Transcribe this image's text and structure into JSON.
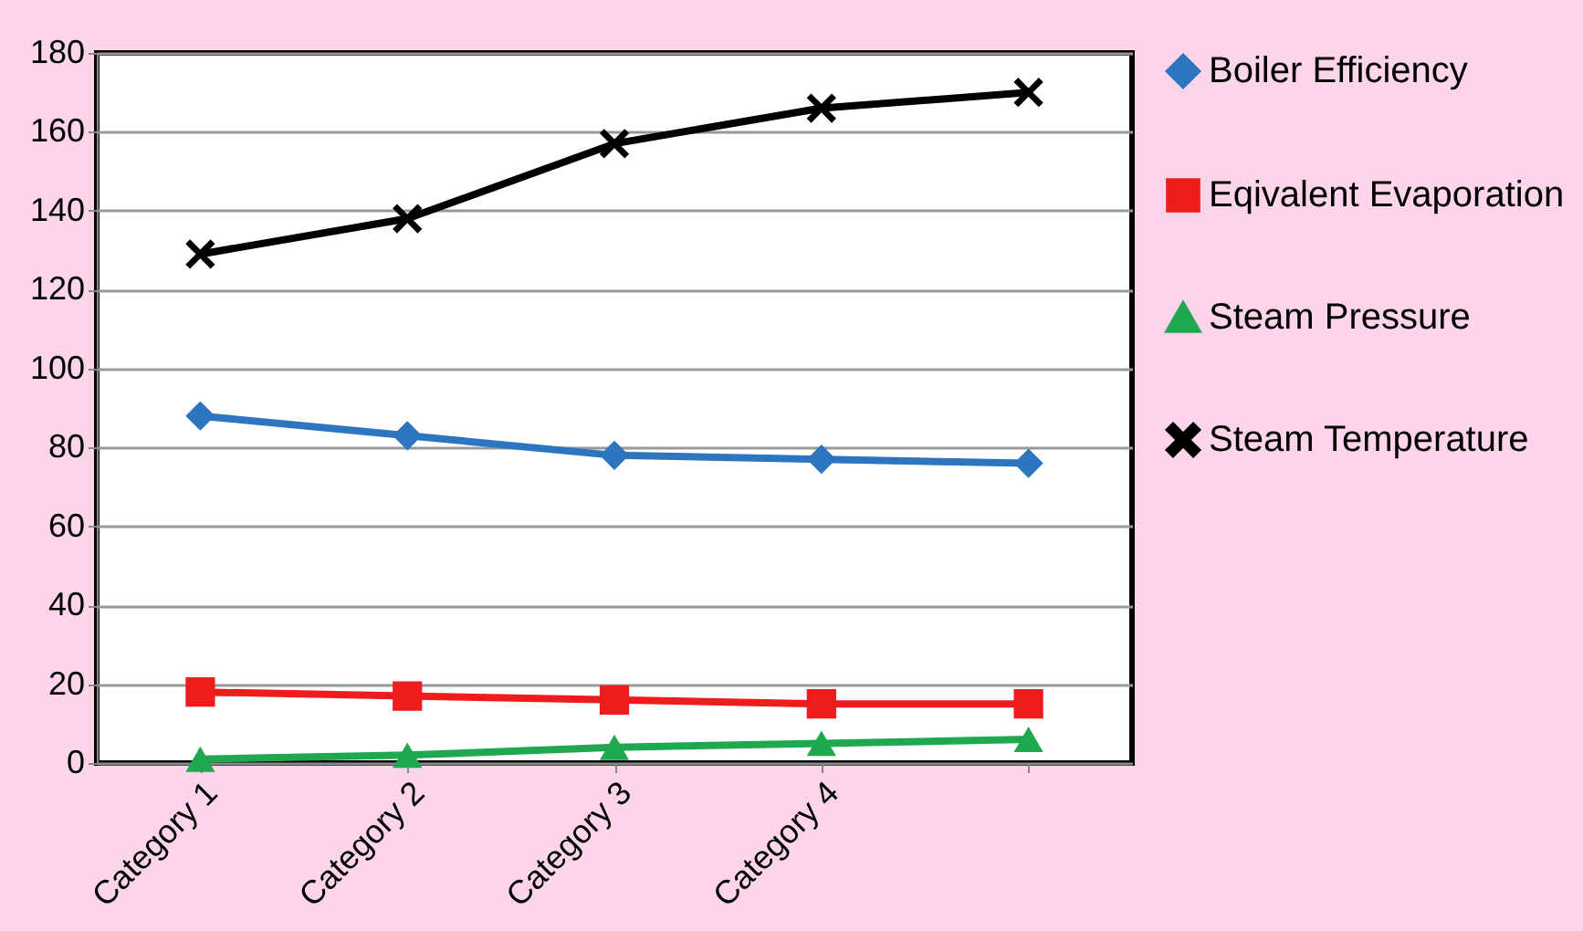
{
  "chart_data": {
    "type": "line",
    "categories": [
      "Category 1",
      "Category 2",
      "Category 3",
      "Category 4",
      null
    ],
    "series": [
      {
        "name": "Boiler Efficiency",
        "color": "#2e75c0",
        "marker": "diamond",
        "values": [
          88,
          83,
          78,
          77,
          76
        ]
      },
      {
        "name": "Eqivalent Evaporation",
        "color": "#ee1c1c",
        "marker": "square",
        "values": [
          18,
          17,
          16,
          15,
          15
        ]
      },
      {
        "name": "Steam Pressure",
        "color": "#1fa84f",
        "marker": "triangle",
        "values": [
          1,
          2,
          4,
          5,
          6
        ]
      },
      {
        "name": "Steam Temperature",
        "color": "#000000",
        "marker": "cross",
        "values": [
          129,
          138,
          157,
          166,
          170
        ]
      }
    ],
    "ylim": [
      0,
      180
    ],
    "yticks": [
      0,
      20,
      40,
      60,
      80,
      100,
      120,
      140,
      160,
      180
    ],
    "grid": "y",
    "legend": "right"
  }
}
